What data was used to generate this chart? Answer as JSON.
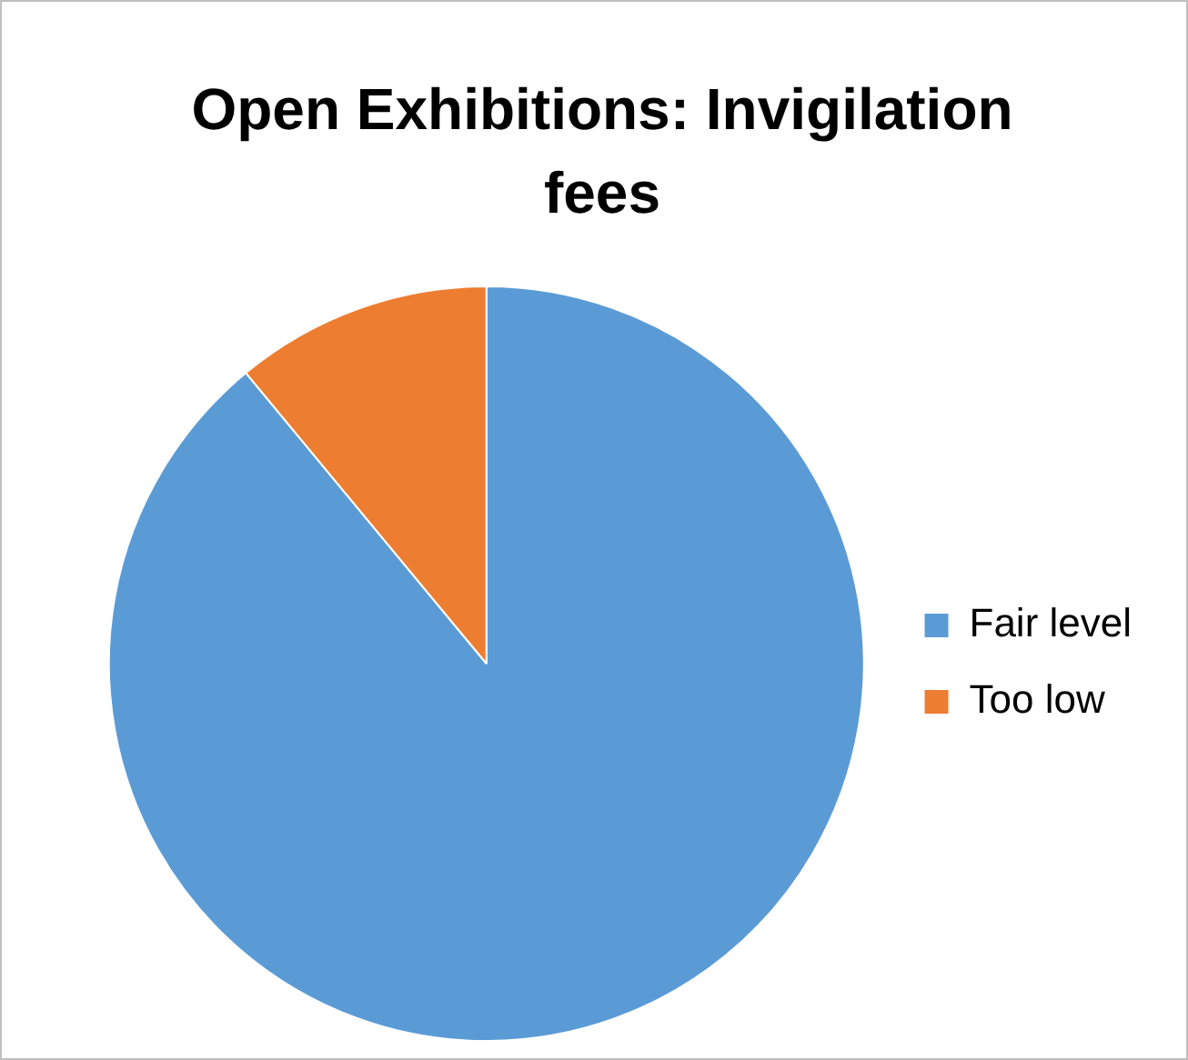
{
  "chart_data": {
    "type": "pie",
    "title": "Open Exhibitions: Invigilation fees",
    "categories": [
      "Fair level",
      "Too low"
    ],
    "values": [
      89,
      11
    ],
    "colors": [
      "#5b9bd5",
      "#ed7d31"
    ],
    "legend": "right"
  }
}
